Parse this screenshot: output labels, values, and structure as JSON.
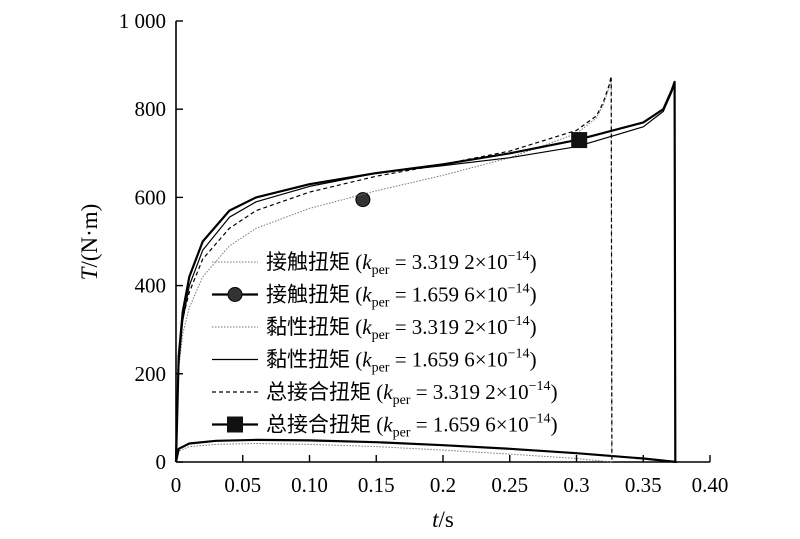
{
  "chart_data": {
    "type": "line",
    "xlabel_var": "t",
    "xlabel_unit": "/s",
    "ylabel_var": "T",
    "ylabel_unit": "/(N·m)",
    "xlim": [
      0,
      0.4
    ],
    "ylim": [
      0,
      1000
    ],
    "x_ticks": [
      "0",
      "0.05",
      "0.10",
      "0.15",
      "0.2",
      "0.25",
      "0.3",
      "0.35",
      "0.40"
    ],
    "x_tick_values": [
      0,
      0.05,
      0.1,
      0.15,
      0.2,
      0.25,
      0.3,
      0.35,
      0.4
    ],
    "y_ticks": [
      "0",
      "200",
      "400",
      "600",
      "800",
      "1 000"
    ],
    "y_tick_values": [
      0,
      200,
      400,
      600,
      800,
      1000
    ],
    "grid": false,
    "legend_position": "inside-left",
    "series": [
      {
        "legend_prefix": "接触扭矩 (",
        "legend_k": "k",
        "legend_sub": "per",
        "legend_mid": " = 3.319 2×10",
        "legend_sup": "−14",
        "legend_suffix": ")",
        "style": "dotted-thin",
        "marker": "none",
        "x": [
          0,
          0.002,
          0.01,
          0.03,
          0.06,
          0.1,
          0.15,
          0.2,
          0.25,
          0.3,
          0.3265
        ],
        "y": [
          0,
          25,
          35,
          40,
          42,
          40,
          35,
          27,
          18,
          8,
          0
        ]
      },
      {
        "legend_prefix": "接触扭矩 (",
        "legend_k": "k",
        "legend_sub": "per",
        "legend_mid": " = 1.659 6×10",
        "legend_sup": "−14",
        "legend_suffix": ")",
        "style": "solid-thick",
        "marker": "circle",
        "marker_x": 0.14,
        "marker_y": 595,
        "x": [
          0,
          0.002,
          0.01,
          0.03,
          0.06,
          0.1,
          0.15,
          0.2,
          0.25,
          0.3,
          0.35,
          0.375
        ],
        "y": [
          0,
          30,
          42,
          48,
          50,
          49,
          45,
          38,
          30,
          20,
          8,
          0
        ]
      },
      {
        "legend_prefix": "黏性扭矩 (",
        "legend_k": "k",
        "legend_sub": "per",
        "legend_mid": " = 3.319 2×10",
        "legend_sup": "−14",
        "legend_suffix": ")",
        "style": "dotted-thin",
        "marker": "none",
        "x": [
          0,
          0.002,
          0.005,
          0.01,
          0.02,
          0.04,
          0.06,
          0.1,
          0.15,
          0.2,
          0.25,
          0.3,
          0.315,
          0.32,
          0.3245,
          0.326,
          0.3265
        ],
        "y": [
          0,
          210,
          290,
          350,
          420,
          490,
          530,
          575,
          615,
          650,
          690,
          745,
          780,
          810,
          850,
          870,
          0
        ]
      },
      {
        "legend_prefix": "黏性扭矩 (",
        "legend_k": "k",
        "legend_sub": "per",
        "legend_mid": " = 1.659 6×10",
        "legend_sup": "−14",
        "legend_suffix": ")",
        "style": "solid-thin",
        "marker": "none",
        "x": [
          0,
          0.002,
          0.005,
          0.01,
          0.02,
          0.04,
          0.06,
          0.1,
          0.15,
          0.2,
          0.25,
          0.3,
          0.35,
          0.365,
          0.3715,
          0.3735,
          0.374
        ],
        "y": [
          0,
          220,
          320,
          400,
          480,
          555,
          590,
          625,
          655,
          672,
          690,
          715,
          760,
          795,
          840,
          860,
          0
        ]
      },
      {
        "legend_prefix": "总接合扭矩 (",
        "legend_k": "k",
        "legend_sub": "per",
        "legend_mid": " = 3.319 2×10",
        "legend_sup": "−14",
        "legend_suffix": ")",
        "style": "dashed-thin",
        "marker": "none",
        "x": [
          0,
          0.002,
          0.005,
          0.01,
          0.02,
          0.04,
          0.06,
          0.1,
          0.15,
          0.2,
          0.25,
          0.3,
          0.315,
          0.32,
          0.3245,
          0.326,
          0.3265
        ],
        "y": [
          0,
          235,
          325,
          385,
          460,
          530,
          570,
          612,
          648,
          675,
          705,
          752,
          785,
          815,
          855,
          875,
          0
        ]
      },
      {
        "legend_prefix": "总接合扭矩 (",
        "legend_k": "k",
        "legend_sub": "per",
        "legend_mid": " = 1.659 6×10",
        "legend_sup": "−14",
        "legend_suffix": ")",
        "style": "solid-thick",
        "marker": "square",
        "marker_x": 0.302,
        "marker_y": 730,
        "x": [
          0,
          0.002,
          0.005,
          0.01,
          0.02,
          0.04,
          0.06,
          0.1,
          0.15,
          0.2,
          0.25,
          0.3,
          0.35,
          0.365,
          0.3715,
          0.3735,
          0.374
        ],
        "y": [
          0,
          240,
          340,
          420,
          500,
          570,
          600,
          630,
          655,
          675,
          700,
          730,
          770,
          800,
          845,
          862,
          0
        ]
      }
    ]
  }
}
